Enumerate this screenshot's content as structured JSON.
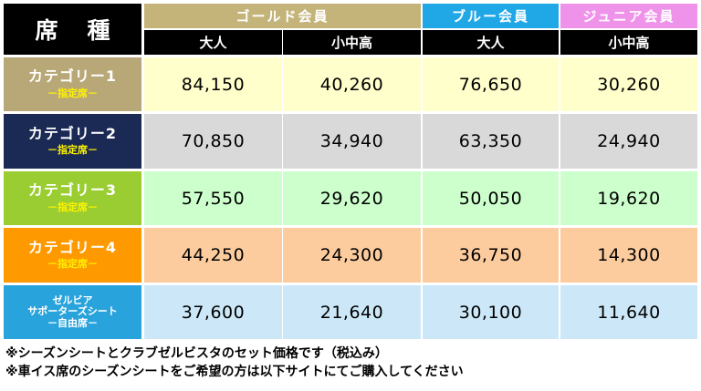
{
  "header": {
    "corner_label": "席種",
    "groups": [
      {
        "label": "ゴールド会員",
        "color": "#c4b47a"
      },
      {
        "label": "ブルー会員",
        "color": "#1fa7e6"
      },
      {
        "label": "ジュニア会員",
        "color": "#ef93ea"
      }
    ],
    "sub_labels": [
      "大人",
      "小中高",
      "大人",
      "小中高"
    ]
  },
  "rows": [
    {
      "name": "カテゴリー1",
      "tag": "－指定席－",
      "label_color": "#b8a877",
      "cell_color": "#ffffcc",
      "values": [
        "84,150",
        "40,260",
        "76,650",
        "30,260"
      ]
    },
    {
      "name": "カテゴリー2",
      "tag": "－指定席－",
      "label_color": "#1b2a55",
      "cell_color": "#d9d9d9",
      "values": [
        "70,850",
        "34,940",
        "63,350",
        "24,940"
      ]
    },
    {
      "name": "カテゴリー3",
      "tag": "－指定席－",
      "label_color": "#9acd32",
      "cell_color": "#ccffcc",
      "values": [
        "57,550",
        "29,620",
        "50,050",
        "19,620"
      ]
    },
    {
      "name": "カテゴリー4",
      "tag": "－指定席－",
      "label_color": "#ff9900",
      "cell_color": "#fdcc9e",
      "values": [
        "44,250",
        "24,300",
        "36,750",
        "14,300"
      ]
    },
    {
      "lines": [
        "ゼルビア",
        "サポーターズシート",
        "－自由席－"
      ],
      "label_color": "#29a3dc",
      "cell_color": "#cce8f8",
      "values": [
        "37,600",
        "21,640",
        "30,100",
        "11,640"
      ]
    }
  ],
  "notes": [
    "※シーズンシートとクラブゼルビスタのセット価格です（税込み）",
    "※車イス席のシーズンシートをご希望の方は以下サイトにてご購入してください"
  ]
}
